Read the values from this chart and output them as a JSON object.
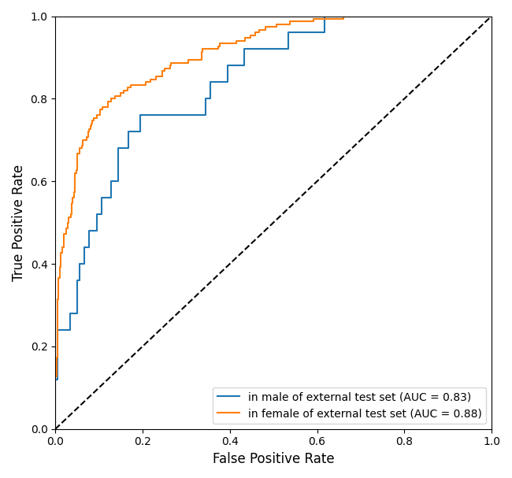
{
  "title": "",
  "xlabel": "False Positive Rate",
  "ylabel": "True Positive Rate",
  "xlim": [
    0.0,
    1.0
  ],
  "ylim": [
    0.0,
    1.0
  ],
  "male_auc": 0.83,
  "female_auc": 0.88,
  "male_color": "#1f77b4",
  "female_color": "#ff7f0e",
  "diagonal_color": "black",
  "legend_labels": [
    "in male of external test set (AUC = 0.83)",
    "in female of external test set (AUC = 0.88)"
  ],
  "legend_loc": "lower right",
  "figsize": [
    6.5,
    6.07
  ],
  "dpi": 100
}
